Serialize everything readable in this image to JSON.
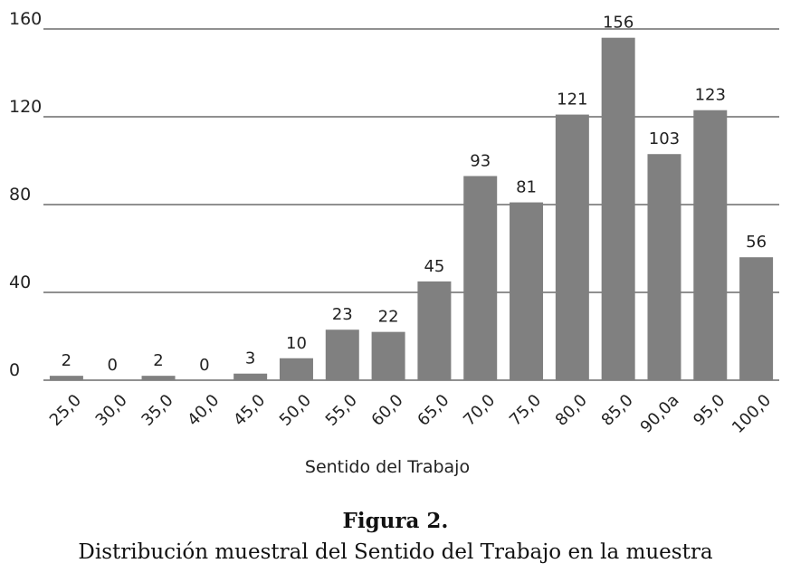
{
  "chart_data": {
    "type": "bar",
    "categories": [
      "25,0",
      "30,0",
      "35,0",
      "40,0",
      "45,0",
      "50,0",
      "55,0",
      "60,0",
      "65,0",
      "70,0",
      "75,0",
      "80,0",
      "85,0",
      "90,0a",
      "95,0",
      "100,0"
    ],
    "values": [
      2,
      0,
      2,
      0,
      3,
      10,
      23,
      22,
      45,
      93,
      81,
      121,
      156,
      103,
      123,
      56
    ],
    "data_labels": [
      "2",
      "0",
      "2",
      "0",
      "3",
      "10",
      "23",
      "22",
      "45",
      "93",
      "81",
      "121",
      "156",
      "103",
      "123",
      "56"
    ],
    "yticks": [
      "0",
      "40",
      "80",
      "120",
      "160"
    ],
    "ylim": [
      0,
      160
    ],
    "xlabel": "Sentido del Trabajo",
    "ylabel": "",
    "grid": "horizontal",
    "bar_color": "#808080"
  },
  "caption": {
    "figure_number": "Figura 2.",
    "title": "Distribución muestral del Sentido del Trabajo en la muestra"
  }
}
